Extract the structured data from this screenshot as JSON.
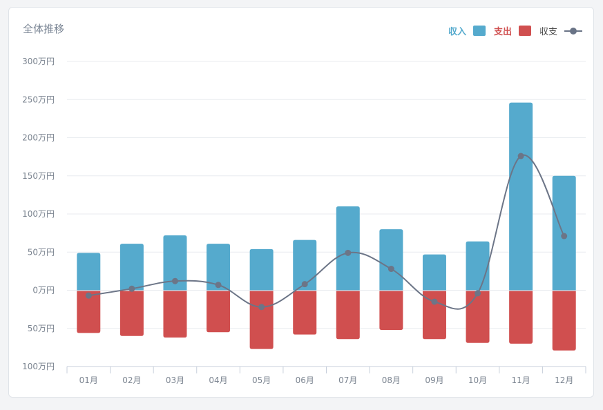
{
  "header": {
    "title": "全体推移"
  },
  "legend": {
    "income": "収入",
    "expense": "支出",
    "balance": "収支"
  },
  "colors": {
    "income": "#55aacd",
    "expense": "#d04f4f",
    "balance": "#6c7587",
    "grid": "#e8ebef",
    "tick": "#7c8591"
  },
  "chart_data": {
    "type": "bar",
    "categories": [
      "01月",
      "02月",
      "03月",
      "04月",
      "05月",
      "06月",
      "07月",
      "08月",
      "09月",
      "10月",
      "11月",
      "12月"
    ],
    "y_tick_labels": [
      "300万円",
      "250万円",
      "200万円",
      "150万円",
      "100万円",
      "50万円",
      "0万円",
      "50万円",
      "100万円"
    ],
    "ylim": [
      -100,
      300
    ],
    "unit": "万円",
    "series": [
      {
        "name": "収入",
        "type": "bar",
        "values": [
          49,
          61,
          72,
          61,
          54,
          66,
          110,
          80,
          47,
          64,
          246,
          150
        ]
      },
      {
        "name": "支出",
        "type": "bar",
        "values": [
          -56,
          -60,
          -62,
          -55,
          -77,
          -58,
          -64,
          -52,
          -64,
          -69,
          -70,
          -79
        ]
      },
      {
        "name": "収支",
        "type": "line",
        "values": [
          -7,
          2,
          12,
          7,
          -22,
          8,
          49,
          28,
          -15,
          -4,
          176,
          71
        ]
      }
    ],
    "grid": true,
    "legend_position": "top-right"
  }
}
